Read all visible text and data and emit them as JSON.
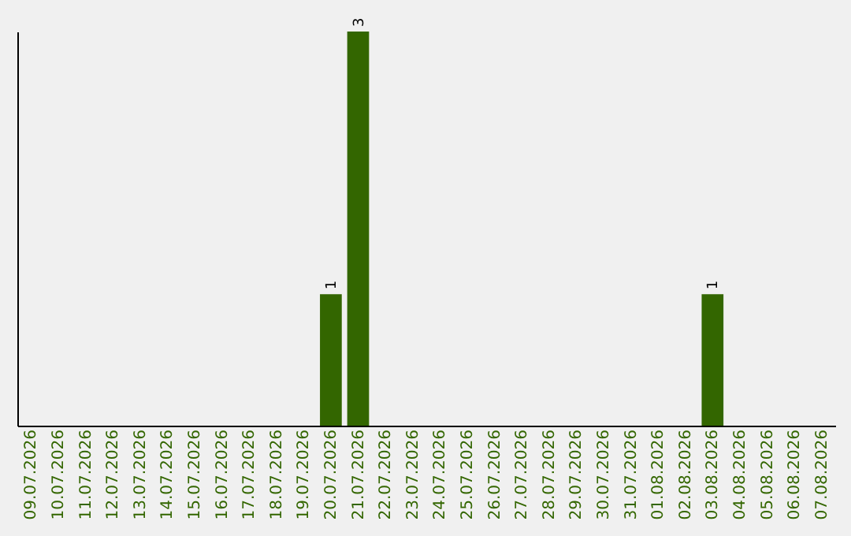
{
  "chart_data": {
    "type": "bar",
    "categories": [
      "09.07.2026",
      "10.07.2026",
      "11.07.2026",
      "12.07.2026",
      "13.07.2026",
      "14.07.2026",
      "15.07.2026",
      "16.07.2026",
      "17.07.2026",
      "18.07.2026",
      "19.07.2026",
      "20.07.2026",
      "21.07.2026",
      "22.07.2026",
      "23.07.2026",
      "24.07.2026",
      "25.07.2026",
      "26.07.2026",
      "27.07.2026",
      "28.07.2026",
      "29.07.2026",
      "30.07.2026",
      "31.07.2026",
      "01.08.2026",
      "02.08.2026",
      "03.08.2026",
      "04.08.2026",
      "05.08.2026",
      "06.08.2026",
      "07.08.2026"
    ],
    "values": [
      0,
      0,
      0,
      0,
      0,
      0,
      0,
      0,
      0,
      0,
      0,
      1,
      3,
      0,
      0,
      0,
      0,
      0,
      0,
      0,
      0,
      0,
      0,
      0,
      0,
      1,
      0,
      0,
      0,
      0
    ],
    "value_labels": [
      null,
      null,
      null,
      null,
      null,
      null,
      null,
      null,
      null,
      null,
      null,
      "1",
      "3",
      null,
      null,
      null,
      null,
      null,
      null,
      null,
      null,
      null,
      null,
      null,
      null,
      "1",
      null,
      null,
      null,
      null
    ],
    "color": "#336600",
    "ylim": [
      0,
      3
    ],
    "tick_labels": "x",
    "grid": false
  }
}
